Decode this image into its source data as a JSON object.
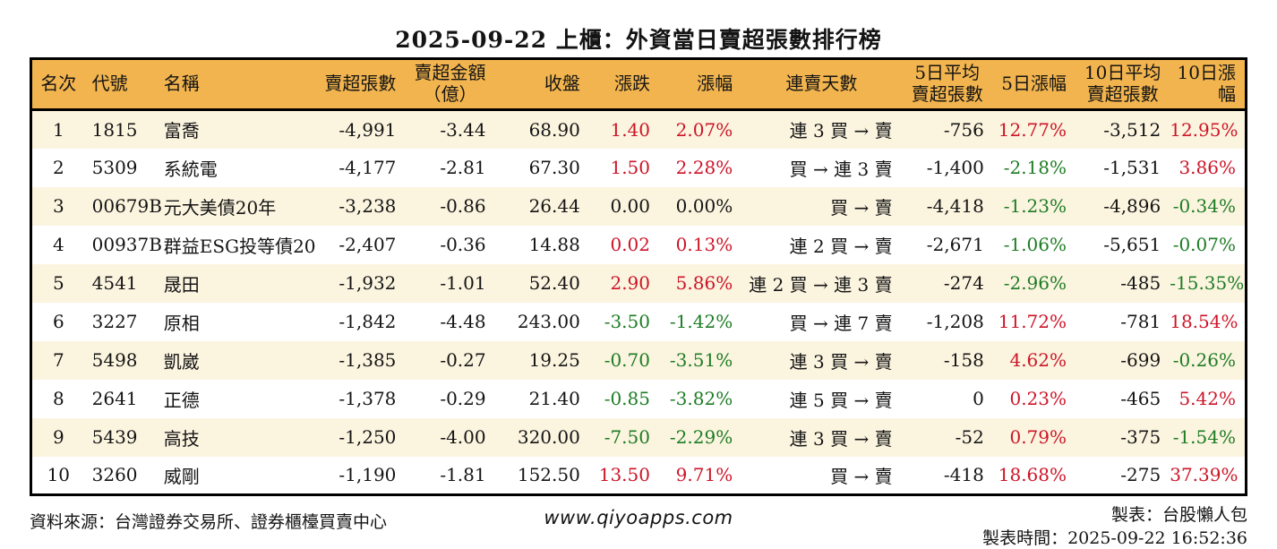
{
  "colors": {
    "gold": "#f2b44e",
    "cream": "#fbf4df",
    "red": "#cc1528",
    "green": "#1d7c24",
    "border": "#000000"
  },
  "chart_data": {
    "type": "table",
    "title": "2025-09-22 上櫃：外資當日賣超張數排行榜",
    "legend_position": "none",
    "grid": "striped-rows",
    "columns": [
      {
        "key": "rank",
        "label": "名次",
        "align": "center",
        "header_align": "center"
      },
      {
        "key": "code",
        "label": "代號",
        "align": "left",
        "header_align": "left"
      },
      {
        "key": "name",
        "label": "名稱",
        "align": "left",
        "header_align": "left"
      },
      {
        "key": "sell_volume",
        "label": "賣超張數",
        "align": "right",
        "header_align": "right"
      },
      {
        "key": "sell_amount",
        "label": "賣超金額\n（億）",
        "align": "right",
        "header_align": "center"
      },
      {
        "key": "close",
        "label": "收盤",
        "align": "right",
        "header_align": "right"
      },
      {
        "key": "change",
        "label": "漲跌",
        "align": "right",
        "header_align": "right"
      },
      {
        "key": "change_pct",
        "label": "漲幅",
        "align": "right",
        "header_align": "right"
      },
      {
        "key": "streak",
        "label": "連賣天數",
        "align": "right",
        "header_align": "center"
      },
      {
        "key": "avg5",
        "label": "5日平均\n賣超張數",
        "align": "right",
        "header_align": "center"
      },
      {
        "key": "pct5",
        "label": "5日漲幅",
        "align": "right",
        "header_align": "right"
      },
      {
        "key": "avg10",
        "label": "10日平均\n賣超張數",
        "align": "right",
        "header_align": "center"
      },
      {
        "key": "pct10",
        "label": "10日漲幅",
        "align": "right",
        "header_align": "right"
      }
    ],
    "rows": [
      {
        "rank": "1",
        "code": "1815",
        "name": "富喬",
        "sell_volume": "-4,991",
        "sell_amount": "-3.44",
        "close": "68.90",
        "change": "1.40",
        "change_pct": "2.07%",
        "streak": "連 3 買 → 賣",
        "avg5": "-756",
        "pct5": "12.77%",
        "avg10": "-3,512",
        "pct10": "12.95%",
        "colors": {
          "change": "red",
          "change_pct": "red",
          "pct5": "red",
          "pct10": "red"
        }
      },
      {
        "rank": "2",
        "code": "5309",
        "name": "系統電",
        "sell_volume": "-4,177",
        "sell_amount": "-2.81",
        "close": "67.30",
        "change": "1.50",
        "change_pct": "2.28%",
        "streak": "買 → 連 3 賣",
        "avg5": "-1,400",
        "pct5": "-2.18%",
        "avg10": "-1,531",
        "pct10": "3.86%",
        "colors": {
          "change": "red",
          "change_pct": "red",
          "pct5": "green",
          "pct10": "red"
        }
      },
      {
        "rank": "3",
        "code": "00679B",
        "name": "元大美債20年",
        "sell_volume": "-3,238",
        "sell_amount": "-0.86",
        "close": "26.44",
        "change": "0.00",
        "change_pct": "0.00%",
        "streak": "買 → 賣",
        "avg5": "-4,418",
        "pct5": "-1.23%",
        "avg10": "-4,896",
        "pct10": "-0.34%",
        "colors": {
          "pct5": "green",
          "pct10": "green"
        }
      },
      {
        "rank": "4",
        "code": "00937B",
        "name": "群益ESG投等債20",
        "sell_volume": "-2,407",
        "sell_amount": "-0.36",
        "close": "14.88",
        "change": "0.02",
        "change_pct": "0.13%",
        "streak": "連 2 買 → 賣",
        "avg5": "-2,671",
        "pct5": "-1.06%",
        "avg10": "-5,651",
        "pct10": "-0.07%",
        "colors": {
          "change": "red",
          "change_pct": "red",
          "pct5": "green",
          "pct10": "green"
        }
      },
      {
        "rank": "5",
        "code": "4541",
        "name": "晟田",
        "sell_volume": "-1,932",
        "sell_amount": "-1.01",
        "close": "52.40",
        "change": "2.90",
        "change_pct": "5.86%",
        "streak": "連 2 買 → 連 3 賣",
        "avg5": "-274",
        "pct5": "-2.96%",
        "avg10": "-485",
        "pct10": "-15.35%",
        "colors": {
          "change": "red",
          "change_pct": "red",
          "pct5": "green",
          "pct10": "green"
        }
      },
      {
        "rank": "6",
        "code": "3227",
        "name": "原相",
        "sell_volume": "-1,842",
        "sell_amount": "-4.48",
        "close": "243.00",
        "change": "-3.50",
        "change_pct": "-1.42%",
        "streak": "買 → 連 7 賣",
        "avg5": "-1,208",
        "pct5": "11.72%",
        "avg10": "-781",
        "pct10": "18.54%",
        "colors": {
          "change": "green",
          "change_pct": "green",
          "pct5": "red",
          "pct10": "red"
        }
      },
      {
        "rank": "7",
        "code": "5498",
        "name": "凱崴",
        "sell_volume": "-1,385",
        "sell_amount": "-0.27",
        "close": "19.25",
        "change": "-0.70",
        "change_pct": "-3.51%",
        "streak": "連 3 買 → 賣",
        "avg5": "-158",
        "pct5": "4.62%",
        "avg10": "-699",
        "pct10": "-0.26%",
        "colors": {
          "change": "green",
          "change_pct": "green",
          "pct5": "red",
          "pct10": "green"
        }
      },
      {
        "rank": "8",
        "code": "2641",
        "name": "正德",
        "sell_volume": "-1,378",
        "sell_amount": "-0.29",
        "close": "21.40",
        "change": "-0.85",
        "change_pct": "-3.82%",
        "streak": "連 5 買 → 賣",
        "avg5": "0",
        "pct5": "0.23%",
        "avg10": "-465",
        "pct10": "5.42%",
        "colors": {
          "change": "green",
          "change_pct": "green",
          "pct5": "red",
          "pct10": "red"
        }
      },
      {
        "rank": "9",
        "code": "5439",
        "name": "高技",
        "sell_volume": "-1,250",
        "sell_amount": "-4.00",
        "close": "320.00",
        "change": "-7.50",
        "change_pct": "-2.29%",
        "streak": "連 3 買 → 賣",
        "avg5": "-52",
        "pct5": "0.79%",
        "avg10": "-375",
        "pct10": "-1.54%",
        "colors": {
          "change": "green",
          "change_pct": "green",
          "pct5": "red",
          "pct10": "green"
        }
      },
      {
        "rank": "10",
        "code": "3260",
        "name": "威剛",
        "sell_volume": "-1,190",
        "sell_amount": "-1.81",
        "close": "152.50",
        "change": "13.50",
        "change_pct": "9.71%",
        "streak": "買 → 賣",
        "avg5": "-418",
        "pct5": "18.68%",
        "avg10": "-275",
        "pct10": "37.39%",
        "colors": {
          "change": "red",
          "change_pct": "red",
          "pct5": "red",
          "pct10": "red"
        }
      }
    ]
  },
  "footer": {
    "source": "資料來源：台灣證券交易所、證券櫃檯買賣中心",
    "website": "www.qiyoapps.com",
    "maker": "製表：台股懶人包",
    "made_time": "製表時間：2025-09-22 16:52:36"
  }
}
